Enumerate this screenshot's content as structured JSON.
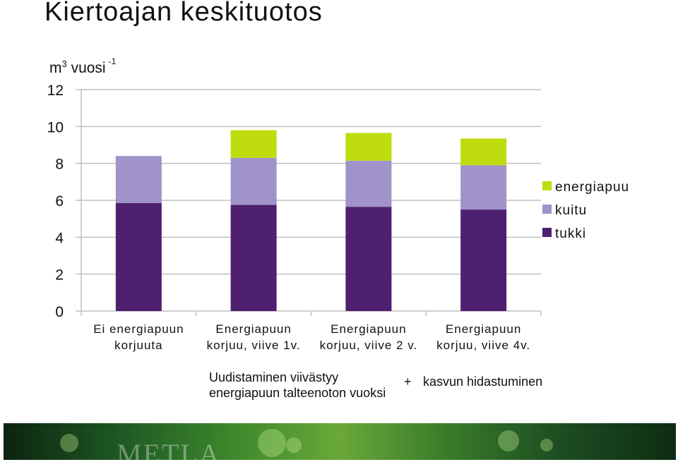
{
  "title": "Kiertoajan keskituotos",
  "y_unit": {
    "base": "m",
    "sup": "3",
    "word": "vuosi",
    "exp": "-1"
  },
  "notes": {
    "left_line1": "Uudistaminen viivästyy",
    "left_line2": "energiapuun talteenoton vuoksi",
    "plus": "+",
    "right": "kasvun hidastuminen"
  },
  "footer": {
    "logo": "METLA"
  },
  "colors": {
    "tukki": "#4f2070",
    "kuitu": "#a093c9",
    "energiapuu": "#bedc0e",
    "grid": "#bfbfbf"
  },
  "chart_data": {
    "type": "bar",
    "stacked": true,
    "ylim": [
      0,
      12
    ],
    "yticks": [
      0,
      2,
      4,
      6,
      8,
      10,
      12
    ],
    "grid": true,
    "legend_position": "right",
    "categories": [
      [
        "Ei energiapuun",
        "korjuuta"
      ],
      [
        "Energiapuun",
        "korjuu, viive 1v."
      ],
      [
        "Energiapuun",
        "korjuu, viive 2 v."
      ],
      [
        "Energiapuun",
        "korjuu, viive 4v."
      ]
    ],
    "series": [
      {
        "name": "tukki",
        "values": [
          5.85,
          5.75,
          5.65,
          5.5
        ]
      },
      {
        "name": "kuitu",
        "values": [
          2.55,
          2.55,
          2.5,
          2.4
        ]
      },
      {
        "name": "energiapuu",
        "values": [
          0,
          1.5,
          1.5,
          1.45
        ]
      }
    ],
    "legend_order": [
      "energiapuu",
      "kuitu",
      "tukki"
    ]
  }
}
